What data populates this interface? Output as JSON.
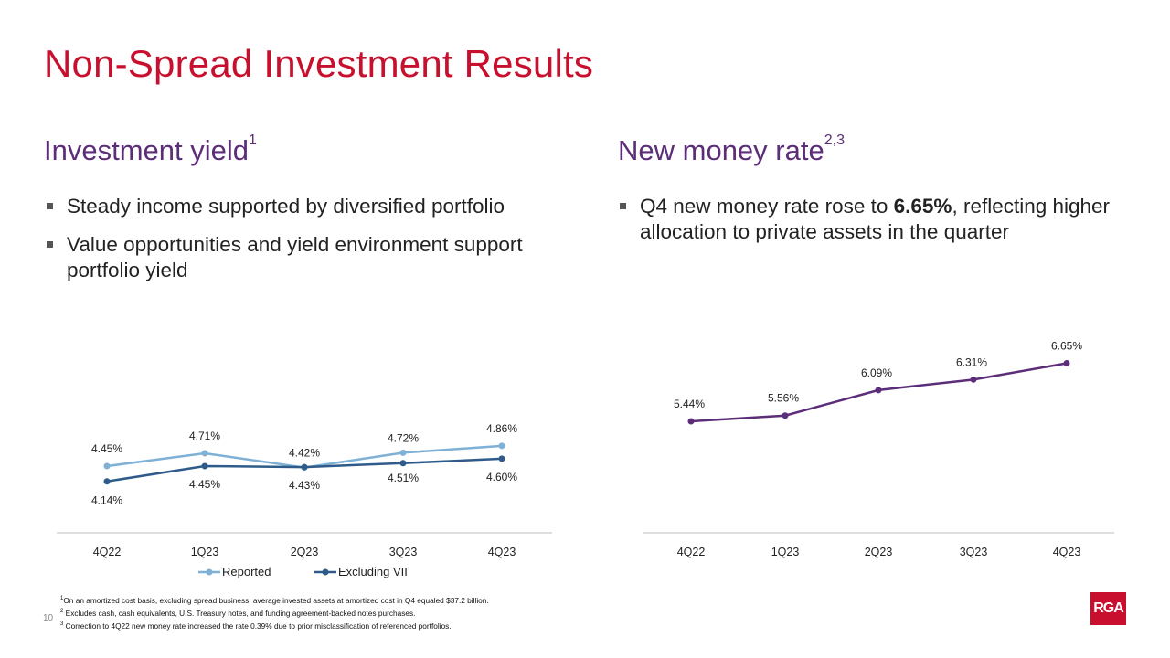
{
  "title": "Non-Spread Investment Results",
  "left": {
    "heading": "Investment yield",
    "heading_sup": "1",
    "bullets": [
      "Steady income supported by diversified portfolio",
      "Value opportunities and yield environment support portfolio yield"
    ]
  },
  "right": {
    "heading": "New money rate",
    "heading_sup": "2,3",
    "bullet_pre": "Q4 new money rate rose to ",
    "bullet_bold": "6.65%",
    "bullet_post": ", reflecting higher allocation to private assets in the quarter"
  },
  "chart_data": [
    {
      "type": "line",
      "title": "Investment yield",
      "categories": [
        "4Q22",
        "1Q23",
        "2Q23",
        "3Q23",
        "4Q23"
      ],
      "series": [
        {
          "name": "Reported",
          "values": [
            4.45,
            4.71,
            4.42,
            4.72,
            4.86
          ],
          "labels": [
            "4.45%",
            "4.71%",
            "4.42%",
            "4.72%",
            "4.86%"
          ],
          "color": "#7fb0d6"
        },
        {
          "name": "Excluding VII",
          "values": [
            4.14,
            4.45,
            4.43,
            4.51,
            4.6
          ],
          "labels": [
            "4.14%",
            "4.45%",
            "4.43%",
            "4.51%",
            "4.60%"
          ],
          "color": "#2e5b8a"
        }
      ],
      "legend": "bottom",
      "grid": false
    },
    {
      "type": "line",
      "title": "New money rate",
      "categories": [
        "4Q22",
        "1Q23",
        "2Q23",
        "3Q23",
        "4Q23"
      ],
      "series": [
        {
          "name": "New money rate",
          "values": [
            5.44,
            5.56,
            6.09,
            6.31,
            6.65
          ],
          "labels": [
            "5.44%",
            "5.56%",
            "6.09%",
            "6.31%",
            "6.65%"
          ],
          "color": "#5c2d78"
        }
      ],
      "legend": "none",
      "grid": false
    }
  ],
  "footnotes": [
    {
      "sup": "1",
      "text": "On an amortized cost basis, excluding spread business; average invested assets at amortized cost in Q4 equaled $37.2 billion."
    },
    {
      "sup": "2",
      "text": "Excludes cash, cash equivalents, U.S. Treasury notes, and funding agreement-backed notes purchases."
    },
    {
      "sup": "3",
      "text": "Correction to 4Q22 new money rate increased the rate 0.39% due to prior misclassification of referenced portfolios."
    }
  ],
  "page_number": "10",
  "logo_text": "RGA"
}
